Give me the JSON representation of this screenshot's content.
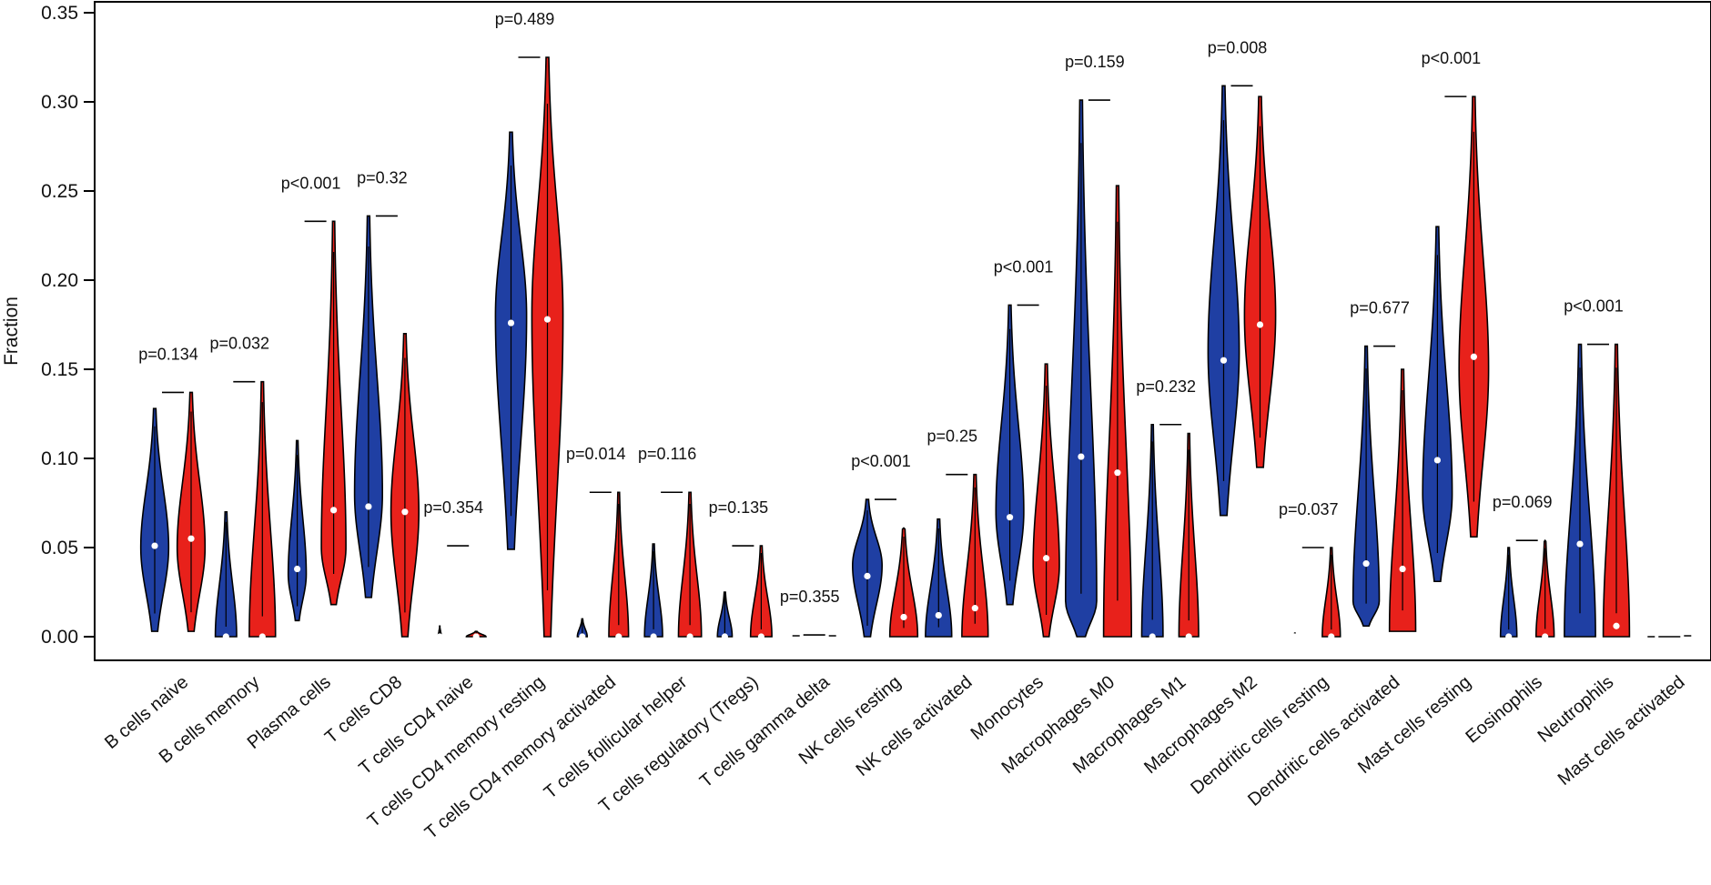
{
  "chart_data": {
    "type": "violin",
    "title": "",
    "xlabel": "",
    "ylabel": "Fraction",
    "ylim": [
      0,
      0.35
    ],
    "yticks": [
      "0.00",
      "0.05",
      "0.10",
      "0.15",
      "0.20",
      "0.25",
      "0.30",
      "0.35"
    ],
    "grid": false,
    "legend": "none",
    "colors": {
      "group1": "#1f3fa3",
      "group2": "#e8211b",
      "median_dot": "#ffffff",
      "outline": "#000000"
    },
    "categories": [
      "B cells naive",
      "B cells memory",
      "Plasma cells",
      "T cells CD8",
      "T cells CD4 naive",
      "T cells CD4 memory resting",
      "T cells CD4 memory activated",
      "T cells follicular helper",
      "T cells regulatory (Tregs)",
      "T cells gamma delta",
      "NK cells resting",
      "NK cells activated",
      "Monocytes",
      "Macrophages M0",
      "Macrophages M1",
      "Macrophages M2",
      "Dendritic cells resting",
      "Dendritic cells activated",
      "Mast cells resting",
      "Eosinophils",
      "Neutrophils",
      "Mast cells activated"
    ],
    "p_values": [
      "p=0.134",
      "p=0.032",
      "p<0.001",
      "p=0.32",
      "p=0.354",
      "p=0.489",
      "p=0.014",
      "p=0.116",
      "p=0.135",
      "p=0.355",
      "p<0.001",
      "p=0.25",
      "p<0.001",
      "p=0.159",
      "p=0.232",
      "p=0.008",
      "p=0.037",
      "p=0.677",
      "p<0.001",
      "p=0.069",
      "p<0.001",
      ""
    ],
    "series": [
      {
        "min": [
          0.003,
          0.0,
          0.009,
          0.022,
          0.0,
          0.049,
          0.0,
          0.0,
          0.0,
          0.0,
          0.0,
          0.0,
          0.018,
          0.0,
          0.0,
          0.068,
          0.0,
          0.006,
          0.031,
          0.0,
          0.0,
          0.0
        ],
        "max": [
          0.128,
          0.07,
          0.11,
          0.236,
          0.006,
          0.283,
          0.01,
          0.052,
          0.025,
          0.001,
          0.077,
          0.066,
          0.186,
          0.301,
          0.119,
          0.309,
          0.002,
          0.163,
          0.23,
          0.05,
          0.164,
          0.0
        ],
        "median": [
          0.051,
          0.0,
          0.038,
          0.073,
          0.0,
          0.176,
          0.0,
          0.0,
          0.0,
          0.0,
          0.034,
          0.012,
          0.067,
          0.101,
          0.0,
          0.155,
          0.0,
          0.041,
          0.099,
          0.0,
          0.052,
          0.0
        ],
        "mode": [
          0.05,
          0.0,
          0.035,
          0.08,
          0.0,
          0.18,
          0.0,
          0.0,
          0.0,
          0.0,
          0.04,
          0.0,
          0.07,
          0.02,
          0.0,
          0.16,
          0.0,
          0.02,
          0.08,
          0.0,
          0.0,
          0.0
        ],
        "width": [
          0.85,
          0.65,
          0.55,
          0.85,
          0.1,
          0.95,
          0.3,
          0.55,
          0.45,
          0.1,
          0.9,
          0.8,
          0.85,
          0.95,
          0.65,
          0.95,
          0.1,
          0.8,
          0.9,
          0.5,
          0.95,
          0.05
        ]
      },
      {
        "min": [
          0.003,
          0.0,
          0.018,
          0.0,
          0.0,
          0.0,
          0.0,
          0.0,
          0.0,
          0.0,
          0.0,
          0.0,
          0.0,
          0.0,
          0.0,
          0.095,
          0.0,
          0.003,
          0.056,
          0.0,
          0.0,
          0.0
        ],
        "max": [
          0.137,
          0.143,
          0.233,
          0.17,
          0.003,
          0.325,
          0.081,
          0.081,
          0.051,
          0.001,
          0.061,
          0.091,
          0.153,
          0.253,
          0.114,
          0.303,
          0.05,
          0.15,
          0.303,
          0.054,
          0.164,
          0.001
        ],
        "median": [
          0.055,
          0.0,
          0.071,
          0.07,
          0.0,
          0.178,
          0.0,
          0.0,
          0.0,
          0.0,
          0.011,
          0.016,
          0.044,
          0.092,
          0.0,
          0.175,
          0.0,
          0.038,
          0.157,
          0.0,
          0.006,
          0.0
        ],
        "mode": [
          0.05,
          0.0,
          0.05,
          0.07,
          0.0,
          0.18,
          0.0,
          0.0,
          0.0,
          0.0,
          0.0,
          0.0,
          0.04,
          0.0,
          0.0,
          0.18,
          0.0,
          0.0,
          0.15,
          0.0,
          0.0,
          0.0
        ],
        "width": [
          0.85,
          0.8,
          0.75,
          0.85,
          0.6,
          0.95,
          0.6,
          0.7,
          0.65,
          0.1,
          0.85,
          0.8,
          0.8,
          0.85,
          0.6,
          0.95,
          0.55,
          0.8,
          0.9,
          0.55,
          0.8,
          0.05
        ]
      }
    ],
    "bracket_tops": [
      0.137,
      0.143,
      0.233,
      0.236,
      0.051,
      0.325,
      0.081,
      0.081,
      0.051,
      0.001,
      0.077,
      0.091,
      0.186,
      0.301,
      0.119,
      0.309,
      0.05,
      0.163,
      0.303,
      0.054,
      0.164,
      0.0
    ]
  }
}
